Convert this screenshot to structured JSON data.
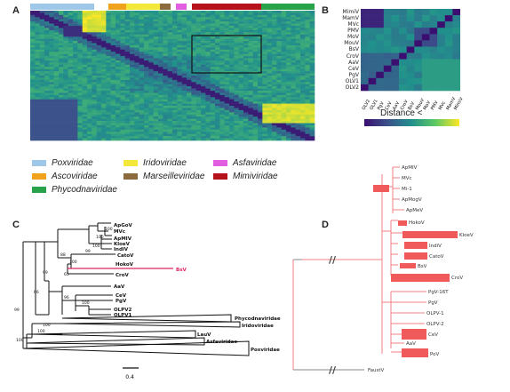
{
  "panels": {
    "a": "A",
    "b": "B",
    "c": "C",
    "d": "D"
  },
  "legend_a": [
    {
      "label": "Poxviridae",
      "color": "#9ec7e8"
    },
    {
      "label": "Iridoviridae",
      "color": "#f3e83a"
    },
    {
      "label": "Asfaviridae",
      "color": "#e25ee0"
    },
    {
      "label": "Ascoviridae",
      "color": "#f0a21d"
    },
    {
      "label": "Marseilleviridae",
      "color": "#8b6b3d"
    },
    {
      "label": "Mimiviridae",
      "color": "#b5121b"
    },
    {
      "label": "Phycodnaviridae",
      "color": "#28a34a"
    }
  ],
  "panel_b_labels": [
    "MimiV",
    "MamV",
    "MVc",
    "PMV",
    "MoV",
    "MouV",
    "BsV",
    "CroV",
    "AaV",
    "CeV",
    "PgV",
    "OLV1",
    "OLV2"
  ],
  "panel_b_cols": [
    "OLV2",
    "OLV1",
    "PgV",
    "CeV",
    "AaV",
    "CroV",
    "BsV",
    "MouV",
    "MoV",
    "PMV",
    "MVc",
    "MamV",
    "MimiV"
  ],
  "colorbar_label": "Distance <",
  "tree_c": {
    "taxa": [
      "ApGoV",
      "MVc",
      "ApMIV",
      "KloeV",
      "IndiV",
      "CatoV",
      "HokoV",
      "BsV",
      "CroV",
      "AaV",
      "CeV",
      "PgV",
      "OLPV2",
      "OLPV1",
      "Phycodnaviridae",
      "Iridoviridae",
      "LauV",
      "Asfaviridae",
      "Poxviridae"
    ],
    "bootstrap": [
      "100",
      "100",
      "100",
      "99",
      "88",
      "100",
      "99",
      "65",
      "66",
      "96",
      "100",
      "99",
      "100",
      "100",
      "100"
    ],
    "scale": "0.4"
  },
  "tree_d": {
    "taxa": [
      "ApMIV",
      "MVc",
      "Mi-1",
      "ApMogV",
      "ApMeV",
      "HokoV",
      "KloeV",
      "IndiV",
      "CatoV",
      "BsV",
      "CroV",
      "PgV-16T",
      "PgV",
      "OLPV-1",
      "OLPV-2",
      "CeV",
      "AaV",
      "PoV",
      "FaustV"
    ]
  },
  "colors": {
    "bar": "#f05a5a",
    "tree_d_line": "#f08080",
    "highlight": "#e0245e"
  }
}
